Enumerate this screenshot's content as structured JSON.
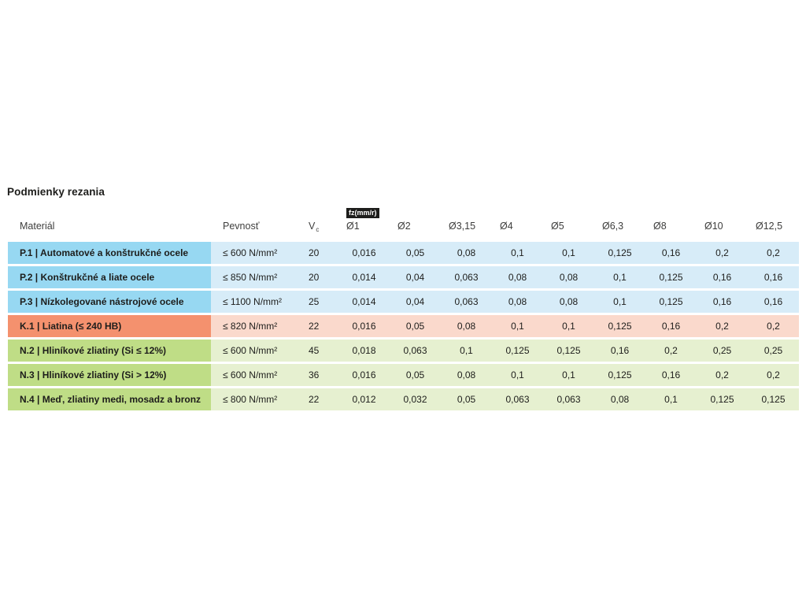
{
  "page": {
    "title": "Podmienky rezania"
  },
  "table": {
    "feed_badge": "fz(mm/r)",
    "headers": {
      "material": "Materiál",
      "strength": "Pevnosť",
      "vc": {
        "base": "V",
        "sub": "c"
      },
      "diameters": [
        "Ø1",
        "Ø2",
        "Ø3,15",
        "Ø4",
        "Ø5",
        "Ø6,3",
        "Ø8",
        "Ø10",
        "Ø12,5"
      ]
    },
    "group_colors": {
      "P": {
        "label_bg": "#97d8f2",
        "row_bg": "#d7ecf8"
      },
      "K": {
        "label_bg": "#f4916e",
        "row_bg": "#fad9cc"
      },
      "N": {
        "label_bg": "#bfdd86",
        "row_bg": "#e6f0d0"
      }
    },
    "rows": [
      {
        "group": "P",
        "material": "P.1 | Automatové a konštrukčné ocele",
        "strength": "≤ 600 N/mm²",
        "vc": "20",
        "feeds": [
          "0,016",
          "0,05",
          "0,08",
          "0,1",
          "0,1",
          "0,125",
          "0,16",
          "0,2",
          "0,2"
        ]
      },
      {
        "group": "P",
        "material": "P.2 | Konštrukčné a liate ocele",
        "strength": "≤ 850 N/mm²",
        "vc": "20",
        "feeds": [
          "0,014",
          "0,04",
          "0,063",
          "0,08",
          "0,08",
          "0,1",
          "0,125",
          "0,16",
          "0,16"
        ]
      },
      {
        "group": "P",
        "material": "P.3 | Nízkolegované nástrojové ocele",
        "strength": "≤ 1100 N/mm²",
        "vc": "25",
        "feeds": [
          "0,014",
          "0,04",
          "0,063",
          "0,08",
          "0,08",
          "0,1",
          "0,125",
          "0,16",
          "0,16"
        ]
      },
      {
        "group": "K",
        "material": "K.1 | Liatina (≤ 240 HB)",
        "strength": "≤ 820 N/mm²",
        "vc": "22",
        "feeds": [
          "0,016",
          "0,05",
          "0,08",
          "0,1",
          "0,1",
          "0,125",
          "0,16",
          "0,2",
          "0,2"
        ]
      },
      {
        "group": "N",
        "material": "N.2 | Hliníkové zliatiny (Si ≤ 12%)",
        "strength": "≤ 600 N/mm²",
        "vc": "45",
        "feeds": [
          "0,018",
          "0,063",
          "0,1",
          "0,125",
          "0,125",
          "0,16",
          "0,2",
          "0,25",
          "0,25"
        ]
      },
      {
        "group": "N",
        "material": "N.3 | Hliníkové zliatiny (Si > 12%)",
        "strength": "≤ 600 N/mm²",
        "vc": "36",
        "feeds": [
          "0,016",
          "0,05",
          "0,08",
          "0,1",
          "0,1",
          "0,125",
          "0,16",
          "0,2",
          "0,2"
        ]
      },
      {
        "group": "N",
        "material": "N.4 | Meď, zliatiny medi, mosadz a bronz",
        "strength": "≤ 800 N/mm²",
        "vc": "22",
        "feeds": [
          "0,012",
          "0,032",
          "0,05",
          "0,063",
          "0,063",
          "0,08",
          "0,1",
          "0,125",
          "0,125"
        ]
      }
    ]
  }
}
